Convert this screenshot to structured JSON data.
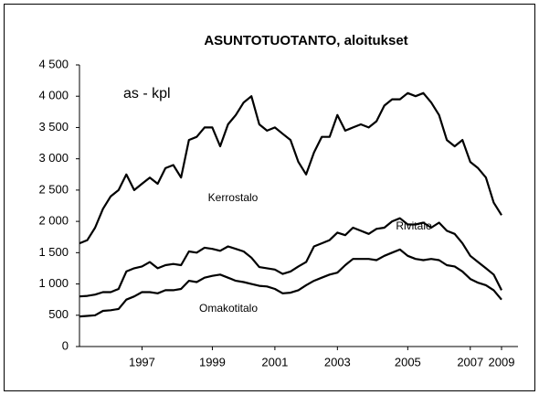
{
  "chart_data": {
    "type": "line",
    "title": "ASUNTOTUOTANTO, aloitukset",
    "y_label": "as - kpl",
    "categories": [
      null,
      null,
      null,
      null,
      null,
      null,
      null,
      null,
      "1997",
      null,
      null,
      null,
      null,
      null,
      null,
      null,
      null,
      "1999",
      null,
      null,
      null,
      null,
      null,
      null,
      null,
      "2001",
      null,
      null,
      null,
      null,
      null,
      null,
      null,
      "2003",
      null,
      null,
      null,
      null,
      null,
      null,
      null,
      null,
      "2005",
      null,
      null,
      null,
      null,
      null,
      null,
      null,
      "2007",
      null,
      null,
      null,
      "2009"
    ],
    "series": [
      {
        "name": "Kerrostalo",
        "color": "#000000",
        "values": [
          1650,
          1700,
          1900,
          2200,
          2400,
          2500,
          2750,
          2500,
          2600,
          2700,
          2600,
          2850,
          2900,
          2700,
          3300,
          3350,
          3500,
          3500,
          3200,
          3550,
          3700,
          3900,
          4000,
          3550,
          3450,
          3500,
          3400,
          3300,
          2950,
          2750,
          3100,
          3350,
          3350,
          3700,
          3450,
          3500,
          3550,
          3500,
          3600,
          3850,
          3950,
          3950,
          4050,
          4000,
          4050,
          3900,
          3700,
          3300,
          3200,
          3300,
          2950,
          2850,
          2700,
          2300,
          2100
        ]
      },
      {
        "name": "Rivitalo",
        "color": "#000000",
        "values": [
          800,
          810,
          830,
          870,
          870,
          920,
          1200,
          1250,
          1280,
          1350,
          1250,
          1300,
          1320,
          1300,
          1520,
          1500,
          1580,
          1560,
          1530,
          1600,
          1560,
          1520,
          1420,
          1270,
          1250,
          1230,
          1160,
          1200,
          1280,
          1350,
          1600,
          1650,
          1700,
          1820,
          1780,
          1900,
          1850,
          1800,
          1880,
          1900,
          2000,
          2050,
          1950,
          1950,
          1980,
          1900,
          1980,
          1850,
          1800,
          1650,
          1450,
          1350,
          1250,
          1150,
          900
        ]
      },
      {
        "name": "Omakotitalo",
        "color": "#000000",
        "values": [
          480,
          490,
          500,
          570,
          580,
          600,
          750,
          800,
          870,
          870,
          850,
          900,
          900,
          920,
          1050,
          1030,
          1100,
          1130,
          1150,
          1100,
          1050,
          1030,
          1000,
          970,
          960,
          920,
          850,
          860,
          900,
          980,
          1050,
          1100,
          1150,
          1180,
          1300,
          1400,
          1400,
          1400,
          1380,
          1450,
          1500,
          1550,
          1450,
          1400,
          1380,
          1400,
          1380,
          1300,
          1280,
          1200,
          1080,
          1020,
          980,
          900,
          750
        ]
      }
    ],
    "ylim": [
      0,
      4500
    ],
    "yticks": [
      0,
      500,
      {
        "value": 1000,
        "label": "1 000"
      },
      {
        "value": 1500,
        "label": "1 500"
      },
      {
        "value": 2000,
        "label": "2 000"
      },
      {
        "value": 2500,
        "label": "2 500"
      },
      {
        "value": 3000,
        "label": "3 000"
      },
      {
        "value": 3500,
        "label": "3 500"
      },
      {
        "value": 4000,
        "label": "4 000"
      },
      {
        "value": 4500,
        "label": "4 500"
      }
    ],
    "grid": false
  }
}
